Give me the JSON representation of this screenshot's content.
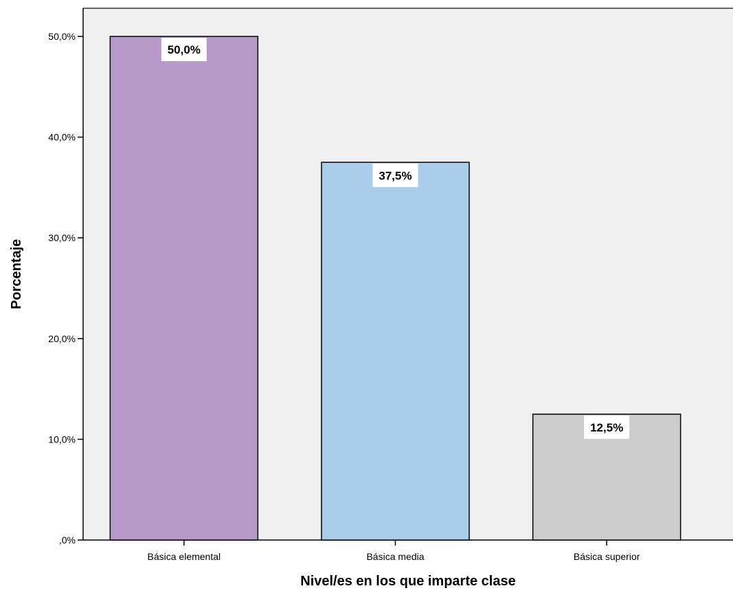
{
  "chart_data": {
    "type": "bar",
    "xlabel": "Nivel/es en los que imparte clase",
    "ylabel": "Porcentaje",
    "categories": [
      "Básica elemental",
      "Básica media",
      "Básica superior"
    ],
    "values": [
      50.0,
      37.5,
      12.5
    ],
    "value_labels": [
      "50,0%",
      "37,5%",
      "12,5%"
    ],
    "colors": [
      "#b79ac9",
      "#abcdec",
      "#cccccc"
    ],
    "ylim": [
      0,
      50
    ],
    "yticks": [
      0,
      10,
      20,
      30,
      40,
      50
    ],
    "ytick_labels": [
      ",0%",
      "10,0%",
      "20,0%",
      "30,0%",
      "40,0%",
      "50,0%"
    ],
    "grid": false,
    "plot_background": "#f0f0f0"
  }
}
